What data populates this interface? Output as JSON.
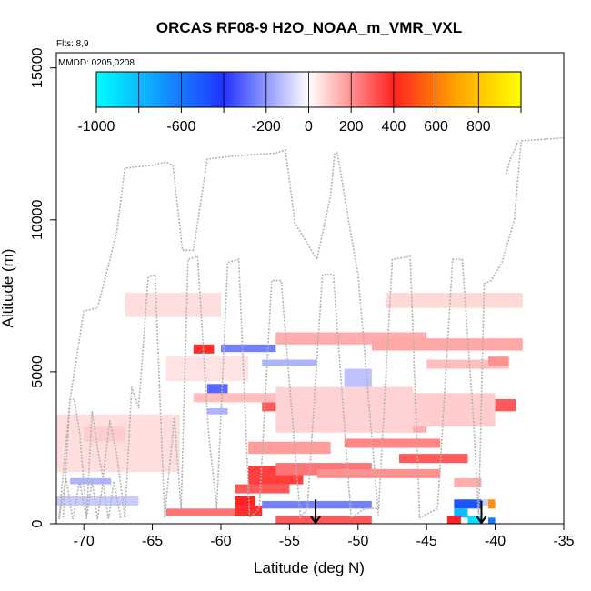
{
  "chart_data": {
    "type": "heatmap",
    "title": "ORCAS RF08-9 H2O_NOAA_m_VMR_VXL",
    "corner_labels": {
      "flights": "Flts: 8,9",
      "dates": "MMDD: 0205,0208"
    },
    "xlabel": "Latitude (deg N)",
    "ylabel": "Altitude (m)",
    "xlim": [
      -72,
      -35
    ],
    "ylim": [
      0,
      15500
    ],
    "x_ticks": [
      "-70",
      "-65",
      "-60",
      "-55",
      "-50",
      "-45",
      "-40",
      "-35"
    ],
    "y_ticks": [
      "0",
      "5000",
      "10000",
      "15000"
    ],
    "colorbar": {
      "range": [
        -1000,
        1000
      ],
      "tick_labels": [
        "-1000",
        "-600",
        "-200",
        "0",
        "200",
        "400",
        "600",
        "800"
      ],
      "colors": {
        "min": "#00ffff",
        "blue": "#2233ff",
        "zero": "#ffffff",
        "red": "#ff2222",
        "orange": "#ffa500",
        "max": "#ffff00"
      }
    },
    "cells": [
      {
        "lat0": -62,
        "lat1": -60.5,
        "alt0": 5600,
        "alt1": 5900,
        "value": 380
      },
      {
        "lat0": -60,
        "lat1": -56,
        "alt0": 5650,
        "alt1": 5900,
        "value": -250
      },
      {
        "lat0": -57,
        "lat1": -53,
        "alt0": 5200,
        "alt1": 5400,
        "value": -150
      },
      {
        "lat0": -56,
        "lat1": -45,
        "alt0": 5900,
        "alt1": 6300,
        "value": 150
      },
      {
        "lat0": -67,
        "lat1": -60,
        "alt0": 6800,
        "alt1": 7600,
        "value": 60
      },
      {
        "lat0": -48,
        "lat1": -38,
        "alt0": 7100,
        "alt1": 7600,
        "value": 70
      },
      {
        "lat0": -49,
        "lat1": -38,
        "alt0": 5700,
        "alt1": 6100,
        "value": 160
      },
      {
        "lat0": -45,
        "lat1": -39,
        "alt0": 5100,
        "alt1": 5400,
        "value": 120
      },
      {
        "lat0": -61,
        "lat1": -59.5,
        "alt0": 4250,
        "alt1": 4600,
        "value": -300
      },
      {
        "lat0": -61,
        "lat1": -59.5,
        "alt0": 3600,
        "alt1": 3800,
        "value": -150
      },
      {
        "lat0": -57,
        "lat1": -53,
        "alt0": 3700,
        "alt1": 4000,
        "value": 300
      },
      {
        "lat0": -54,
        "lat1": -48,
        "alt0": 3600,
        "alt1": 3900,
        "value": 180
      },
      {
        "lat0": -62,
        "lat1": -55,
        "alt0": 4000,
        "alt1": 4300,
        "value": 120
      },
      {
        "lat0": -58,
        "lat1": -52,
        "alt0": 2300,
        "alt1": 2700,
        "value": 180
      },
      {
        "lat0": -51,
        "lat1": -44,
        "alt0": 2500,
        "alt1": 2800,
        "value": 220
      },
      {
        "lat0": -47,
        "lat1": -42,
        "alt0": 2000,
        "alt1": 2300,
        "value": 300
      },
      {
        "lat0": -49,
        "lat1": -45,
        "alt0": 3000,
        "alt1": 3300,
        "value": 150
      },
      {
        "lat0": -58,
        "lat1": -54,
        "alt0": 1300,
        "alt1": 1900,
        "value": 350
      },
      {
        "lat0": -56,
        "lat1": -49,
        "alt0": 1600,
        "alt1": 2000,
        "value": 250
      },
      {
        "lat0": -53,
        "lat1": -44,
        "alt0": 1500,
        "alt1": 1800,
        "value": 200
      },
      {
        "lat0": -59,
        "lat1": -55,
        "alt0": 1000,
        "alt1": 1300,
        "value": 300
      },
      {
        "lat0": -43,
        "lat1": -41,
        "alt0": 1200,
        "alt1": 1500,
        "value": 150
      },
      {
        "lat0": -59,
        "lat1": -57.5,
        "alt0": 600,
        "alt1": 900,
        "value": 400
      },
      {
        "lat0": -57,
        "lat1": -49,
        "alt0": 500,
        "alt1": 750,
        "value": -250
      },
      {
        "lat0": -59,
        "lat1": -57,
        "alt0": 250,
        "alt1": 600,
        "value": 380
      },
      {
        "lat0": -64,
        "lat1": -59,
        "alt0": 250,
        "alt1": 500,
        "value": 250
      },
      {
        "lat0": -56,
        "lat1": -49,
        "alt0": 0,
        "alt1": 250,
        "value": 300
      },
      {
        "lat0": -43,
        "lat1": -41,
        "alt0": 500,
        "alt1": 800,
        "value": -500
      },
      {
        "lat0": -43,
        "lat1": -42,
        "alt0": 200,
        "alt1": 500,
        "value": -800
      },
      {
        "lat0": -42,
        "lat1": -41,
        "alt0": 0,
        "alt1": 250,
        "value": -900
      },
      {
        "lat0": -43.5,
        "lat1": -42.5,
        "alt0": 0,
        "alt1": 250,
        "value": 400
      },
      {
        "lat0": -40.5,
        "lat1": -40,
        "alt0": 500,
        "alt1": 800,
        "value": 650
      },
      {
        "lat0": -41,
        "lat1": -40.5,
        "alt0": 600,
        "alt1": 800,
        "value": -100
      },
      {
        "lat0": -40.5,
        "lat1": -40,
        "alt0": 0,
        "alt1": 200,
        "value": -600
      },
      {
        "lat0": -72,
        "lat1": -63,
        "alt0": 1700,
        "alt1": 3600,
        "value": 60
      },
      {
        "lat0": -70,
        "lat1": -67,
        "alt0": 2700,
        "alt1": 3200,
        "value": 90
      },
      {
        "lat0": -71,
        "lat1": -68,
        "alt0": 1300,
        "alt1": 1500,
        "value": -150
      },
      {
        "lat0": -72,
        "lat1": -66,
        "alt0": 600,
        "alt1": 900,
        "value": -100
      },
      {
        "lat0": -56,
        "lat1": -46,
        "alt0": 3000,
        "alt1": 4500,
        "value": 80
      },
      {
        "lat0": -46,
        "lat1": -40,
        "alt0": 3200,
        "alt1": 4300,
        "value": 90
      },
      {
        "lat0": -64,
        "lat1": -58,
        "alt0": 4700,
        "alt1": 5500,
        "value": 50
      },
      {
        "lat0": -51,
        "lat1": -49,
        "alt0": 4500,
        "alt1": 5100,
        "value": -120
      },
      {
        "lat0": -40,
        "lat1": -38.5,
        "alt0": 3700,
        "alt1": 4100,
        "value": 300
      },
      {
        "lat0": -40.5,
        "lat1": -39,
        "alt0": 5200,
        "alt1": 5500,
        "value": 200
      }
    ],
    "flight_tracks": [
      [
        [
          -71.8,
          150
        ],
        [
          -71.3,
          1500
        ],
        [
          -70.8,
          150
        ],
        [
          -70.3,
          1400
        ],
        [
          -69.8,
          150
        ],
        [
          -69.4,
          1400
        ],
        [
          -69,
          150
        ],
        [
          -68.6,
          1350
        ],
        [
          -68.2,
          150
        ],
        [
          -67.8,
          1400
        ],
        [
          -67.3,
          150
        ]
      ],
      [
        [
          -71.5,
          200
        ],
        [
          -71,
          4100
        ],
        [
          -70.7,
          4100
        ],
        [
          -70.3,
          3000
        ],
        [
          -69.8,
          200
        ],
        [
          -69.4,
          3700
        ],
        [
          -69,
          2500
        ],
        [
          -68.6,
          1500
        ],
        [
          -68.1,
          3400
        ],
        [
          -67.6,
          2300
        ],
        [
          -67,
          200
        ],
        [
          -66.5,
          4500
        ],
        [
          -66,
          3800
        ],
        [
          -65.3,
          8100
        ],
        [
          -64.8,
          8200
        ],
        [
          -64.1,
          200
        ],
        [
          -63.4,
          3500
        ],
        [
          -62.9,
          500
        ],
        [
          -62.4,
          8700
        ],
        [
          -61.7,
          8800
        ],
        [
          -60.9,
          3000
        ],
        [
          -60.3,
          500
        ],
        [
          -59.5,
          8600
        ],
        [
          -58.7,
          8700
        ],
        [
          -57.9,
          200
        ],
        [
          -57.2,
          500
        ],
        [
          -56.3,
          8000
        ],
        [
          -55.6,
          8000
        ],
        [
          -54.2,
          200
        ],
        [
          -53.7,
          500
        ],
        [
          -52.6,
          8200
        ],
        [
          -51.8,
          8200
        ],
        [
          -50.5,
          200
        ],
        [
          -49.5,
          500
        ],
        [
          -48.5,
          500
        ],
        [
          -47.5,
          8700
        ],
        [
          -46.2,
          8800
        ],
        [
          -45.5,
          200
        ],
        [
          -44.2,
          500
        ],
        [
          -43.1,
          8700
        ],
        [
          -42.4,
          8700
        ],
        [
          -41.6,
          3500
        ],
        [
          -41.2,
          300
        ],
        [
          -40.8,
          7900
        ],
        [
          -40.3,
          8000
        ],
        [
          -39.5,
          8600
        ],
        [
          -38.6,
          10000
        ],
        [
          -38.1,
          12600
        ],
        [
          -35,
          12700
        ]
      ],
      [
        [
          -71.8,
          200
        ],
        [
          -71,
          4100
        ],
        [
          -70,
          7000
        ],
        [
          -69,
          7100
        ],
        [
          -68.2,
          8500
        ],
        [
          -67.6,
          9600
        ],
        [
          -67,
          11700
        ],
        [
          -65,
          11800
        ],
        [
          -64,
          11900
        ],
        [
          -63.5,
          11800
        ],
        [
          -62.8,
          9000
        ],
        [
          -62,
          9000
        ],
        [
          -61,
          12000
        ],
        [
          -59,
          12100
        ],
        [
          -56,
          12200
        ],
        [
          -55.3,
          12300
        ],
        [
          -54.6,
          9900
        ],
        [
          -53,
          8700
        ],
        [
          -52,
          10800
        ],
        [
          -51.7,
          12200
        ],
        [
          -51.5,
          12200
        ],
        [
          -50.7,
          10000
        ],
        [
          -50,
          8200
        ],
        [
          -48.5,
          200
        ]
      ],
      [
        [
          -39.2,
          11500
        ],
        [
          -38.9,
          12000
        ],
        [
          -38.3,
          12600
        ]
      ]
    ],
    "arrows": [
      {
        "lat": -53.1,
        "alt_top": 800,
        "alt_bottom": 0
      },
      {
        "lat": -41.0,
        "alt_top": 750,
        "alt_bottom": 0
      }
    ]
  }
}
